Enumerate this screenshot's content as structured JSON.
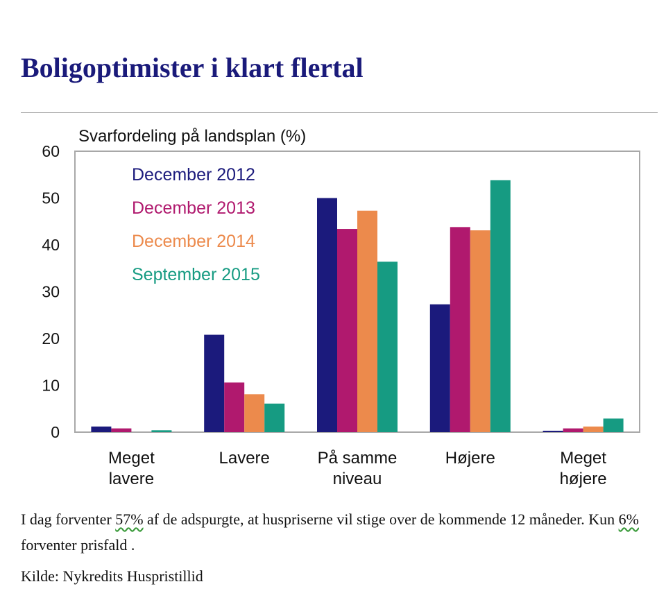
{
  "page": {
    "title": "Boligoptimister i klart flertal",
    "note_part1": "I dag forventer ",
    "note_pct1": "57%",
    "note_part2": " af de adspurgte, at huspriserne vil stige over de kommende 12 måneder. Kun ",
    "note_pct2": "6%",
    "note_part3": " forventer prisfald .",
    "source": "Kilde:  Nykredits Huspristillid"
  },
  "chart_data": {
    "type": "bar",
    "title": "Svarfordeling på landsplan (%)",
    "categories": [
      [
        "Meget",
        "lavere"
      ],
      [
        "Lavere"
      ],
      [
        "På samme",
        "niveau"
      ],
      [
        "Højere"
      ],
      [
        "Meget",
        "højere"
      ]
    ],
    "ylim": [
      0,
      60
    ],
    "yticks": [
      0,
      10,
      20,
      30,
      40,
      50,
      60
    ],
    "grid": false,
    "legend_position": "top-left inside",
    "series": [
      {
        "name": "December 2012",
        "color": "#1b1a7c",
        "values": [
          1.2,
          20.8,
          50.0,
          27.3,
          0.3
        ]
      },
      {
        "name": "December 2013",
        "color": "#b0196e",
        "values": [
          0.8,
          10.6,
          43.4,
          43.8,
          0.8
        ]
      },
      {
        "name": "December 2014",
        "color": "#ec8a4c",
        "values": [
          0.0,
          8.1,
          47.3,
          43.1,
          1.2
        ]
      },
      {
        "name": "September 2015",
        "color": "#169b82",
        "values": [
          0.4,
          6.1,
          36.4,
          53.8,
          2.9
        ]
      }
    ]
  }
}
